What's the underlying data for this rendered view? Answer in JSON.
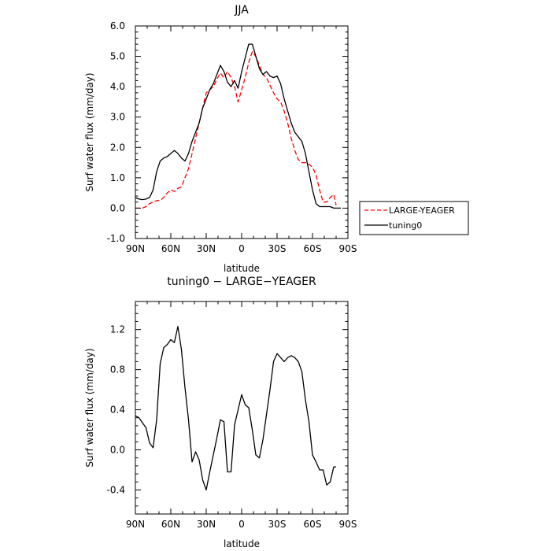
{
  "chart_data": [
    {
      "type": "line",
      "title": "JJA",
      "xlabel": "latitude",
      "ylabel": "Surf water flux (mm/day)",
      "xlim": [
        90,
        -90
      ],
      "ylim": [
        -1.0,
        6.0
      ],
      "x_ticks": [
        90,
        60,
        30,
        0,
        -30,
        -60,
        -90
      ],
      "x_tick_labels": [
        "90N",
        "60N",
        "30N",
        "0",
        "30S",
        "60S",
        "90S"
      ],
      "y_ticks": [
        -1.0,
        0.0,
        1.0,
        2.0,
        3.0,
        4.0,
        5.0,
        6.0
      ],
      "y_tick_labels": [
        "-1.0",
        "0.0",
        "1.0",
        "2.0",
        "3.0",
        "4.0",
        "5.0",
        "6.0"
      ],
      "legend_position": "outside-right",
      "series": [
        {
          "name": "LARGE-YEAGER",
          "color": "#ff0000",
          "dash": "dashed",
          "x": [
            90,
            87,
            84,
            81,
            78,
            75,
            72,
            69,
            66,
            63,
            60,
            57,
            54,
            51,
            48,
            45,
            42,
            39,
            36,
            33,
            30,
            27,
            24,
            21,
            18,
            15,
            12,
            9,
            6,
            3,
            0,
            -3,
            -6,
            -9,
            -12,
            -15,
            -18,
            -21,
            -24,
            -27,
            -30,
            -33,
            -36,
            -39,
            -42,
            -45,
            -48,
            -51,
            -54,
            -57,
            -60,
            -63,
            -66,
            -69,
            -72,
            -75,
            -78,
            -80
          ],
          "y": [
            0.0,
            0.0,
            0.0,
            0.05,
            0.15,
            0.2,
            0.25,
            0.25,
            0.35,
            0.5,
            0.6,
            0.55,
            0.65,
            0.7,
            1.0,
            1.3,
            1.8,
            2.3,
            2.8,
            3.3,
            3.8,
            3.9,
            4.0,
            4.25,
            4.45,
            4.3,
            4.5,
            4.3,
            4.0,
            3.5,
            3.9,
            4.3,
            4.8,
            5.15,
            5.0,
            4.7,
            4.4,
            4.3,
            4.05,
            3.8,
            3.6,
            3.5,
            3.2,
            2.8,
            2.3,
            1.9,
            1.6,
            1.5,
            1.5,
            1.45,
            1.35,
            1.1,
            0.6,
            0.2,
            0.2,
            0.35,
            0.45,
            0.1
          ]
        },
        {
          "name": "tuning0",
          "color": "#000000",
          "dash": "solid",
          "x": [
            90,
            87,
            84,
            81,
            78,
            75,
            72,
            69,
            66,
            63,
            60,
            57,
            54,
            51,
            48,
            45,
            42,
            39,
            36,
            33,
            30,
            27,
            24,
            21,
            18,
            15,
            12,
            9,
            6,
            3,
            0,
            -3,
            -6,
            -9,
            -12,
            -15,
            -18,
            -21,
            -24,
            -27,
            -30,
            -33,
            -36,
            -39,
            -42,
            -45,
            -48,
            -51,
            -54,
            -57,
            -60,
            -63,
            -66,
            -69,
            -72,
            -75,
            -78,
            -80,
            -84
          ],
          "y": [
            0.35,
            0.3,
            0.28,
            0.3,
            0.35,
            0.6,
            1.2,
            1.55,
            1.65,
            1.7,
            1.8,
            1.9,
            1.8,
            1.65,
            1.55,
            1.8,
            2.2,
            2.5,
            2.8,
            3.3,
            3.6,
            3.9,
            4.1,
            4.4,
            4.7,
            4.5,
            4.15,
            4.0,
            4.2,
            3.95,
            4.5,
            4.95,
            5.4,
            5.4,
            5.0,
            4.6,
            4.4,
            4.5,
            4.35,
            4.3,
            4.35,
            4.1,
            3.6,
            3.2,
            2.8,
            2.5,
            2.35,
            2.2,
            1.8,
            1.2,
            0.6,
            0.15,
            0.05,
            0.05,
            0.05,
            0.05,
            0.0,
            0.0,
            0.0
          ]
        }
      ]
    },
    {
      "type": "line",
      "title": "tuning0 − LARGE−YEAGER",
      "xlabel": "latitude",
      "ylabel": "Surf water flux (mm/day)",
      "xlim": [
        90,
        -90
      ],
      "ylim": [
        -0.64,
        1.48
      ],
      "x_ticks": [
        90,
        60,
        30,
        0,
        -30,
        -60,
        -90
      ],
      "x_tick_labels": [
        "90N",
        "60N",
        "30N",
        "0",
        "30S",
        "60S",
        "90S"
      ],
      "y_ticks": [
        -0.4,
        0.0,
        0.4,
        0.8,
        1.2
      ],
      "y_tick_labels": [
        "-0.4",
        "0.0",
        "0.4",
        "0.8",
        "1.2"
      ],
      "series": [
        {
          "color": "#000000",
          "dash": "solid",
          "x": [
            90,
            87,
            84,
            81,
            78,
            75,
            72,
            69,
            66,
            63,
            60,
            57,
            54,
            51,
            48,
            45,
            42,
            39,
            36,
            33,
            30,
            27,
            24,
            21,
            18,
            15,
            12,
            9,
            6,
            3,
            0,
            -3,
            -6,
            -9,
            -12,
            -15,
            -18,
            -21,
            -24,
            -27,
            -30,
            -33,
            -36,
            -39,
            -42,
            -45,
            -48,
            -51,
            -54,
            -57,
            -60,
            -63,
            -66,
            -69,
            -72,
            -75,
            -78,
            -80
          ],
          "y": [
            0.34,
            0.32,
            0.27,
            0.22,
            0.07,
            0.02,
            0.3,
            0.86,
            1.02,
            1.05,
            1.1,
            1.07,
            1.23,
            1.0,
            0.62,
            0.3,
            -0.12,
            -0.02,
            -0.1,
            -0.3,
            -0.4,
            -0.22,
            -0.05,
            0.12,
            0.3,
            0.28,
            -0.22,
            -0.22,
            0.25,
            0.4,
            0.55,
            0.45,
            0.42,
            0.2,
            -0.05,
            -0.08,
            0.1,
            0.35,
            0.6,
            0.88,
            0.96,
            0.92,
            0.88,
            0.92,
            0.94,
            0.92,
            0.88,
            0.78,
            0.5,
            0.28,
            -0.05,
            -0.12,
            -0.2,
            -0.2,
            -0.35,
            -0.32,
            -0.17,
            -0.17
          ]
        }
      ]
    }
  ]
}
